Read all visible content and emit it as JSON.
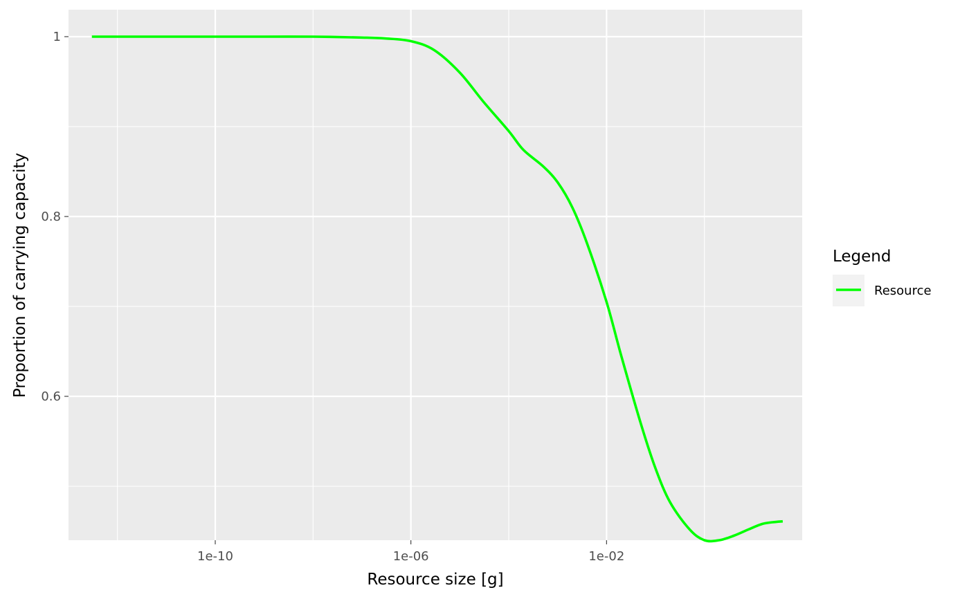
{
  "chart_data": {
    "type": "line",
    "title": "",
    "xlabel": "Resource size [g]",
    "ylabel": "Proportion of carrying capacity",
    "x_scale": "log10",
    "xlim": [
      1e-13,
      100
    ],
    "ylim": [
      0.44,
      1.03
    ],
    "x_ticks": [
      {
        "value": 1e-10,
        "label": "1e-10"
      },
      {
        "value": 1e-06,
        "label": "1e-06"
      },
      {
        "value": 0.01,
        "label": "1e-02"
      }
    ],
    "y_ticks": [
      {
        "value": 0.6,
        "label": "0.6"
      },
      {
        "value": 0.8,
        "label": "0.8"
      },
      {
        "value": 1.0,
        "label": "1"
      }
    ],
    "grid": true,
    "legend": {
      "title": "Legend",
      "position": "right"
    },
    "series": [
      {
        "name": "Resource",
        "color": "#00ff00",
        "x": [
          3e-13,
          1e-12,
          1e-11,
          1e-10,
          1e-09,
          1e-08,
          1e-07,
          3e-07,
          1e-06,
          3e-06,
          1e-05,
          3e-05,
          0.0001,
          0.0002,
          0.0005,
          0.001,
          0.002,
          0.004,
          0.01,
          0.02,
          0.05,
          0.1,
          0.2,
          0.5,
          1,
          2,
          4,
          8,
          15,
          25,
          40
        ],
        "y": [
          1.0,
          1.0,
          1.0,
          1.0,
          1.0,
          1.0,
          0.999,
          0.998,
          0.995,
          0.985,
          0.96,
          0.928,
          0.895,
          0.874,
          0.856,
          0.838,
          0.81,
          0.77,
          0.705,
          0.645,
          0.57,
          0.52,
          0.482,
          0.452,
          0.44,
          0.44,
          0.445,
          0.452,
          0.458,
          0.46,
          0.461
        ]
      }
    ]
  }
}
